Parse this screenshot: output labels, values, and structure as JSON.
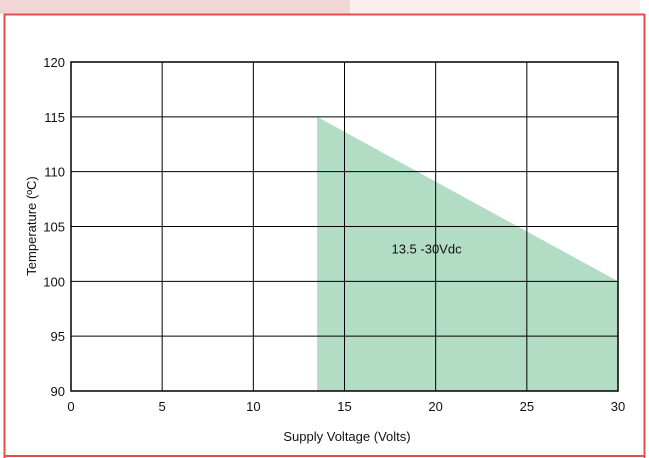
{
  "chart_data": {
    "type": "area",
    "xlabel": "Supply Voltage (Volts)",
    "ylabel": "Temperature (ºC)",
    "xlim": [
      0,
      30
    ],
    "ylim": [
      90,
      120
    ],
    "x_ticks": [
      "0",
      "5",
      "10",
      "15",
      "20",
      "25",
      "30"
    ],
    "y_ticks": [
      "90",
      "95",
      "100",
      "105",
      "110",
      "115",
      "120"
    ],
    "grid": true,
    "series": [
      {
        "x": [
          13.5,
          13.5,
          30,
          30
        ],
        "y": [
          90,
          115,
          100,
          90
        ],
        "color": "#b3dcc4"
      }
    ],
    "annotations": [
      {
        "text": "13.5 -30Vdc",
        "x": 19.5,
        "y": 103
      }
    ]
  },
  "colors": {
    "frame_border": "#e0504f",
    "tab_strip": "#f2d6d6",
    "axis": "#000000"
  }
}
